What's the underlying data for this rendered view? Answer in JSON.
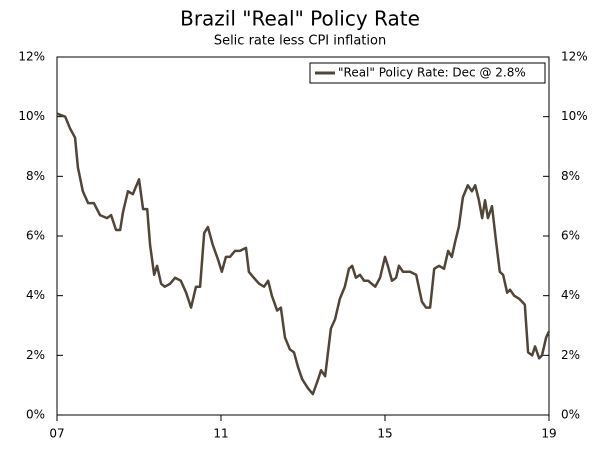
{
  "chart_data": {
    "type": "line",
    "title": "Brazil \"Real\" Policy Rate",
    "subtitle": "Selic rate less CPI inflation",
    "legend": "upper right",
    "series": [
      {
        "name": "\"Real\" Policy Rate: Dec @ 2.8%",
        "color": "#4f4538",
        "x": [
          2007.0,
          2007.2,
          2007.32,
          2007.44,
          2007.51,
          2007.63,
          2007.76,
          2007.9,
          2008.05,
          2008.22,
          2008.32,
          2008.44,
          2008.54,
          2008.61,
          2008.73,
          2008.85,
          2009.0,
          2009.1,
          2009.2,
          2009.27,
          2009.37,
          2009.44,
          2009.54,
          2009.63,
          2009.76,
          2009.88,
          2010.02,
          2010.15,
          2010.27,
          2010.39,
          2010.49,
          2010.59,
          2010.68,
          2010.8,
          2010.93,
          2011.02,
          2011.12,
          2011.22,
          2011.34,
          2011.46,
          2011.61,
          2011.68,
          2011.8,
          2011.93,
          2012.05,
          2012.15,
          2012.24,
          2012.37,
          2012.46,
          2012.56,
          2012.68,
          2012.78,
          2012.88,
          2012.98,
          2013.12,
          2013.24,
          2013.37,
          2013.44,
          2013.54,
          2013.68,
          2013.78,
          2013.9,
          2014.02,
          2014.12,
          2014.2,
          2014.29,
          2014.39,
          2014.49,
          2014.59,
          2014.76,
          2014.88,
          2015.0,
          2015.07,
          2015.17,
          2015.27,
          2015.34,
          2015.44,
          2015.61,
          2015.76,
          2015.9,
          2016.0,
          2016.1,
          2016.2,
          2016.32,
          2016.44,
          2016.54,
          2016.63,
          2016.71,
          2016.8,
          2016.9,
          2017.02,
          2017.12,
          2017.2,
          2017.29,
          2017.37,
          2017.44,
          2017.51,
          2017.61,
          2017.71,
          2017.8,
          2017.88,
          2017.98,
          2018.05,
          2018.15,
          2018.27,
          2018.41,
          2018.49,
          2018.59,
          2018.66,
          2018.76,
          2018.83,
          2018.93,
          2019.0
        ],
        "values": [
          10.1,
          10.0,
          9.6,
          9.3,
          8.3,
          7.5,
          7.1,
          7.1,
          6.7,
          6.6,
          6.7,
          6.2,
          6.2,
          6.8,
          7.5,
          7.4,
          7.9,
          6.9,
          6.9,
          5.7,
          4.7,
          5.0,
          4.4,
          4.3,
          4.4,
          4.6,
          4.5,
          4.1,
          3.6,
          4.3,
          4.3,
          6.1,
          6.3,
          5.7,
          5.2,
          4.8,
          5.3,
          5.3,
          5.5,
          5.5,
          5.6,
          4.8,
          4.6,
          4.4,
          4.3,
          4.5,
          4.0,
          3.5,
          3.6,
          2.6,
          2.2,
          2.1,
          1.6,
          1.2,
          0.9,
          0.7,
          1.2,
          1.5,
          1.3,
          2.9,
          3.2,
          3.9,
          4.3,
          4.9,
          5.0,
          4.6,
          4.7,
          4.5,
          4.5,
          4.3,
          4.6,
          5.3,
          5.0,
          4.5,
          4.6,
          5.0,
          4.8,
          4.8,
          4.7,
          3.8,
          3.6,
          3.6,
          4.9,
          5.0,
          4.9,
          5.5,
          5.3,
          5.8,
          6.3,
          7.3,
          7.7,
          7.5,
          7.7,
          7.2,
          6.6,
          7.2,
          6.6,
          7.0,
          5.8,
          4.8,
          4.7,
          4.1,
          4.2,
          4.0,
          3.9,
          3.7,
          2.1,
          2.0,
          2.3,
          1.9,
          2.0,
          2.6,
          2.8
        ]
      }
    ],
    "xlim": [
      2007,
      2019
    ],
    "xticks": [
      {
        "value": 2007,
        "label": "07"
      },
      {
        "value": 2011,
        "label": "11"
      },
      {
        "value": 2015,
        "label": "15"
      },
      {
        "value": 2019,
        "label": "19"
      }
    ],
    "ylim": [
      0,
      12
    ],
    "yticks": [
      {
        "value": 0,
        "label": "0%"
      },
      {
        "value": 2,
        "label": "2%"
      },
      {
        "value": 4,
        "label": "4%"
      },
      {
        "value": 6,
        "label": "6%"
      },
      {
        "value": 8,
        "label": "8%"
      },
      {
        "value": 10,
        "label": "10%"
      },
      {
        "value": 12,
        "label": "12%"
      }
    ],
    "y2lim": [
      0,
      12
    ],
    "y2ticks": [
      {
        "value": 0,
        "label": "0%"
      },
      {
        "value": 2,
        "label": "2%"
      },
      {
        "value": 4,
        "label": "4%"
      },
      {
        "value": 6,
        "label": "6%"
      },
      {
        "value": 8,
        "label": "8%"
      },
      {
        "value": 10,
        "label": "10%"
      },
      {
        "value": 12,
        "label": "12%"
      }
    ]
  }
}
